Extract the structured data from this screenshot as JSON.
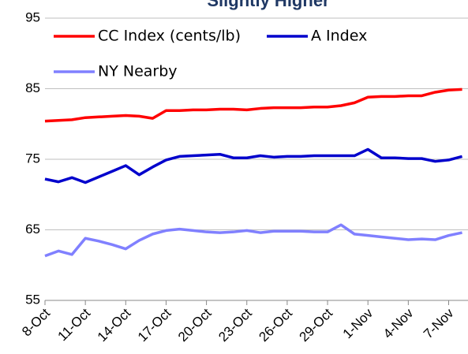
{
  "chart_data": {
    "type": "line",
    "title": "Slightly Higher",
    "categories": [
      "8-Oct",
      null,
      null,
      "11-Oct",
      null,
      null,
      "14-Oct",
      null,
      null,
      "17-Oct",
      null,
      null,
      "20-Oct",
      null,
      null,
      "23-Oct",
      null,
      null,
      "26-Oct",
      null,
      null,
      "29-Oct",
      null,
      null,
      "1-Nov",
      null,
      null,
      "4-Nov",
      null,
      null,
      "7-Nov",
      null
    ],
    "series": [
      {
        "name": "CC Index (cents/lb)",
        "color": "#ff0000",
        "values": [
          80.4,
          80.5,
          80.6,
          80.9,
          81.0,
          81.1,
          81.2,
          81.1,
          80.8,
          81.9,
          81.9,
          82.0,
          82.0,
          82.1,
          82.1,
          82.0,
          82.2,
          82.3,
          82.3,
          82.3,
          82.4,
          82.4,
          82.6,
          83.0,
          83.8,
          83.9,
          83.9,
          84.0,
          84.0,
          84.5,
          84.8,
          84.9
        ]
      },
      {
        "name": "A Index",
        "color": "#0000cc",
        "values": [
          72.2,
          71.8,
          72.4,
          71.7,
          72.5,
          73.3,
          74.1,
          72.8,
          73.9,
          74.9,
          75.4,
          75.5,
          75.6,
          75.7,
          75.2,
          75.2,
          75.5,
          75.3,
          75.4,
          75.4,
          75.5,
          75.5,
          75.5,
          75.5,
          76.4,
          75.2,
          75.2,
          75.1,
          75.1,
          74.7,
          74.9,
          75.4
        ]
      },
      {
        "name": "NY Nearby",
        "color": "#8080ff",
        "values": [
          61.3,
          62.0,
          61.5,
          63.8,
          63.4,
          62.9,
          62.3,
          63.5,
          64.4,
          64.9,
          65.1,
          64.9,
          64.7,
          64.6,
          64.7,
          64.9,
          64.6,
          64.8,
          64.8,
          64.8,
          64.7,
          64.7,
          65.7,
          64.4,
          64.2,
          64.0,
          63.8,
          63.6,
          63.7,
          63.6,
          64.2,
          64.6
        ]
      }
    ],
    "ylim": [
      55,
      95
    ],
    "yticks": [
      55,
      65,
      75,
      85,
      95
    ],
    "grid": true
  }
}
